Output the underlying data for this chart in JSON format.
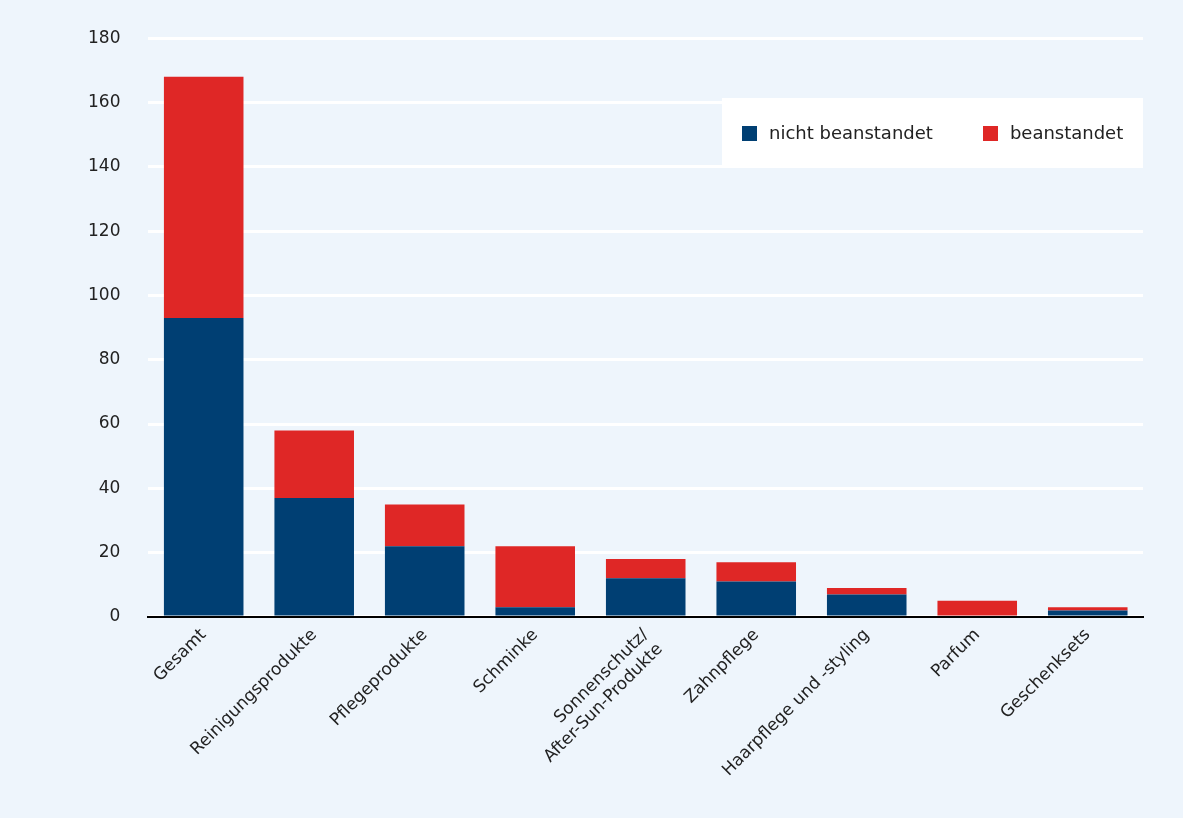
{
  "chart_data": {
    "type": "bar",
    "stacked": true,
    "categories": [
      "Gesamt",
      "Reinigungsprodukte",
      "Pflegeprodukte",
      "Schminke",
      "Sonnenschutz/\nAfter-Sun-Produkte",
      "Zahnpflege",
      "Haarpflege und -styling",
      "Parfum",
      "Geschenksets"
    ],
    "series": [
      {
        "name": "nicht beanstandet",
        "color": "#003f73",
        "values": [
          93,
          37,
          22,
          3,
          12,
          11,
          7,
          0,
          2
        ]
      },
      {
        "name": "beanstandet",
        "color": "#df2726",
        "values": [
          75,
          21,
          13,
          19,
          6,
          6,
          2,
          5,
          1
        ]
      }
    ],
    "ylim": [
      0,
      180
    ],
    "yticks": [
      0,
      20,
      40,
      60,
      80,
      100,
      120,
      140,
      160,
      180
    ],
    "grid": "y",
    "legend": "top right"
  }
}
